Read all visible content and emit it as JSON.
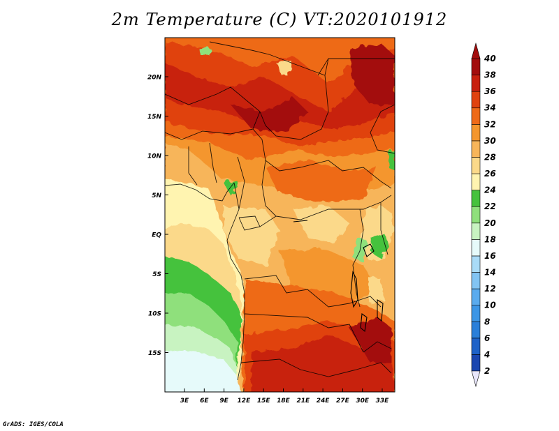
{
  "title": "2m Temperature (C) VT:2020101912",
  "credit": "GrADS: IGES/COLA",
  "map": {
    "variable": "2m Temperature",
    "units": "C",
    "valid_time": "2020101912",
    "lon_labels": [
      "3E",
      "6E",
      "9E",
      "12E",
      "15E",
      "18E",
      "21E",
      "24E",
      "27E",
      "30E",
      "33E"
    ],
    "lat_labels": [
      "20N",
      "15N",
      "10N",
      "5N",
      "EQ",
      "5S",
      "10S",
      "15S"
    ]
  },
  "colorbar": {
    "levels": [
      "2",
      "4",
      "6",
      "8",
      "10",
      "12",
      "14",
      "16",
      "18",
      "20",
      "22",
      "24",
      "26",
      "28",
      "30",
      "32",
      "34",
      "36",
      "38",
      "40"
    ],
    "colors": [
      "#0b0b6e",
      "#1a46b0",
      "#1e62c8",
      "#2a7fd9",
      "#3c96e6",
      "#5aabee",
      "#82c4f3",
      "#a9dbf7",
      "#e6fafa",
      "#c8f3c1",
      "#8fe07c",
      "#45c23d",
      "#fff4b0",
      "#fbd98a",
      "#f7b55a",
      "#f4962d",
      "#ee6a18",
      "#e0420f",
      "#c8200e",
      "#a30d0d",
      "#8a0a0a"
    ],
    "under_color": "#e8e6fb",
    "over_color": "#a30d0d"
  }
}
